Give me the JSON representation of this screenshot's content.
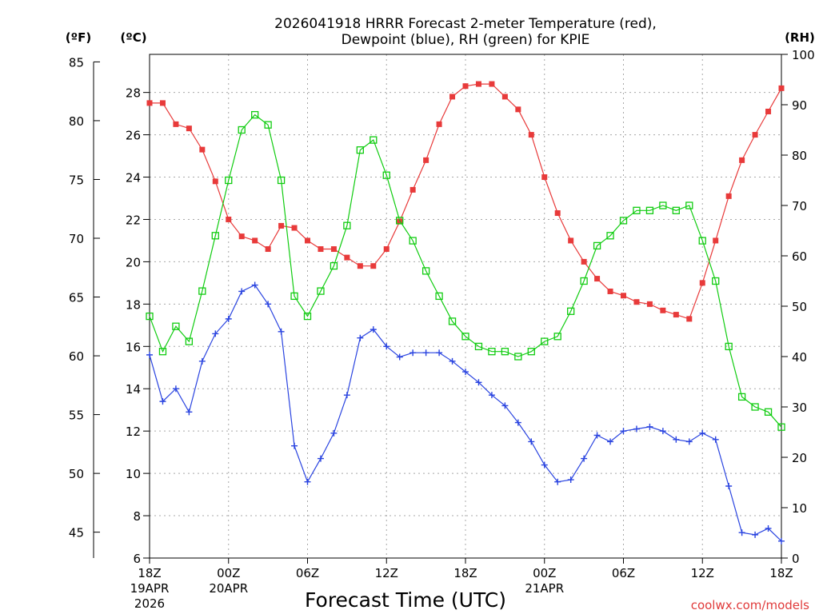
{
  "title_lines": [
    "2026041918 HRRR Forecast 2-meter Temperature (red),",
    "Dewpoint (blue), RH (green) for KPIE"
  ],
  "axis_units": {
    "f": "(ºF)",
    "c": "(ºC)",
    "rh": "(RH)"
  },
  "xlabel": "Forecast Time (UTC)",
  "credit": "coolwx.com/models",
  "colors": {
    "temperature": "#e83a3a",
    "dewpoint": "#2a44e0",
    "rh": "#10cc10"
  },
  "chart_data": {
    "type": "line",
    "x_hours": [
      0,
      1,
      2,
      3,
      4,
      5,
      6,
      7,
      8,
      9,
      10,
      11,
      12,
      13,
      14,
      15,
      16,
      17,
      18,
      19,
      20,
      21,
      22,
      23,
      24,
      25,
      26,
      27,
      28,
      29,
      30,
      31,
      32,
      33,
      34,
      35,
      36,
      37,
      38,
      39,
      40,
      41,
      42,
      43,
      44,
      45,
      46,
      47,
      48
    ],
    "x_tick_labels": [
      {
        "hour": 0,
        "lines": [
          "18Z",
          "19APR",
          "2026"
        ]
      },
      {
        "hour": 6,
        "lines": [
          "00Z",
          "20APR"
        ]
      },
      {
        "hour": 12,
        "lines": [
          "06Z"
        ]
      },
      {
        "hour": 18,
        "lines": [
          "12Z"
        ]
      },
      {
        "hour": 24,
        "lines": [
          "18Z"
        ]
      },
      {
        "hour": 30,
        "lines": [
          "00Z",
          "21APR"
        ]
      },
      {
        "hour": 36,
        "lines": [
          "06Z"
        ]
      },
      {
        "hour": 42,
        "lines": [
          "12Z"
        ]
      },
      {
        "hour": 48,
        "lines": [
          "18Z"
        ]
      }
    ],
    "y_celsius": {
      "min": 6,
      "max": 29.8,
      "ticks": [
        6,
        8,
        10,
        12,
        14,
        16,
        18,
        20,
        22,
        24,
        26,
        28
      ]
    },
    "y_fahrenheit": {
      "ticks": [
        45,
        50,
        55,
        60,
        65,
        70,
        75,
        80,
        85
      ]
    },
    "y_rh": {
      "min": 0,
      "max": 100,
      "ticks": [
        0,
        10,
        20,
        30,
        40,
        50,
        60,
        70,
        80,
        90,
        100
      ]
    },
    "series": [
      {
        "name": "2-meter Temperature",
        "unit": "C",
        "marker": "filled-square",
        "values": [
          27.5,
          27.5,
          26.5,
          26.3,
          25.3,
          23.8,
          22.0,
          21.2,
          21.0,
          20.6,
          21.7,
          21.6,
          21.0,
          20.6,
          20.6,
          20.2,
          19.8,
          19.8,
          20.6,
          21.9,
          23.4,
          24.8,
          26.5,
          27.8,
          28.3,
          28.4,
          28.4,
          27.8,
          27.2,
          26.0,
          24.0,
          22.3,
          21.0,
          20.0,
          19.2,
          18.6,
          18.4,
          18.1,
          18.0,
          17.7,
          17.5,
          17.3,
          19.0,
          21.0,
          23.1,
          24.8,
          26.0,
          27.1,
          28.2
        ]
      },
      {
        "name": "Dewpoint",
        "unit": "C",
        "marker": "plus",
        "values": [
          15.6,
          13.4,
          14.0,
          12.9,
          15.3,
          16.6,
          17.3,
          18.6,
          18.9,
          18.0,
          16.7,
          11.3,
          9.6,
          10.7,
          11.9,
          13.7,
          16.4,
          16.8,
          16.0,
          15.5,
          15.7,
          15.7,
          15.7,
          15.3,
          14.8,
          14.3,
          13.7,
          13.2,
          12.4,
          11.5,
          10.4,
          9.6,
          9.7,
          10.7,
          11.8,
          11.5,
          12.0,
          12.1,
          12.2,
          12.0,
          11.6,
          11.5,
          11.9,
          11.6,
          9.4,
          7.2,
          7.1,
          7.4,
          6.8
        ]
      },
      {
        "name": "RH",
        "unit": "%",
        "marker": "open-square",
        "values": [
          48,
          41,
          46,
          43,
          53,
          64,
          75,
          85,
          88,
          86,
          75,
          52,
          48,
          53,
          58,
          66,
          81,
          83,
          76,
          67,
          63,
          57,
          52,
          47,
          44,
          42,
          41,
          41,
          40,
          41,
          43,
          44,
          49,
          55,
          62,
          64,
          67,
          69,
          69,
          70,
          69,
          70,
          63,
          55,
          42,
          32,
          30,
          29,
          26
        ]
      }
    ]
  }
}
